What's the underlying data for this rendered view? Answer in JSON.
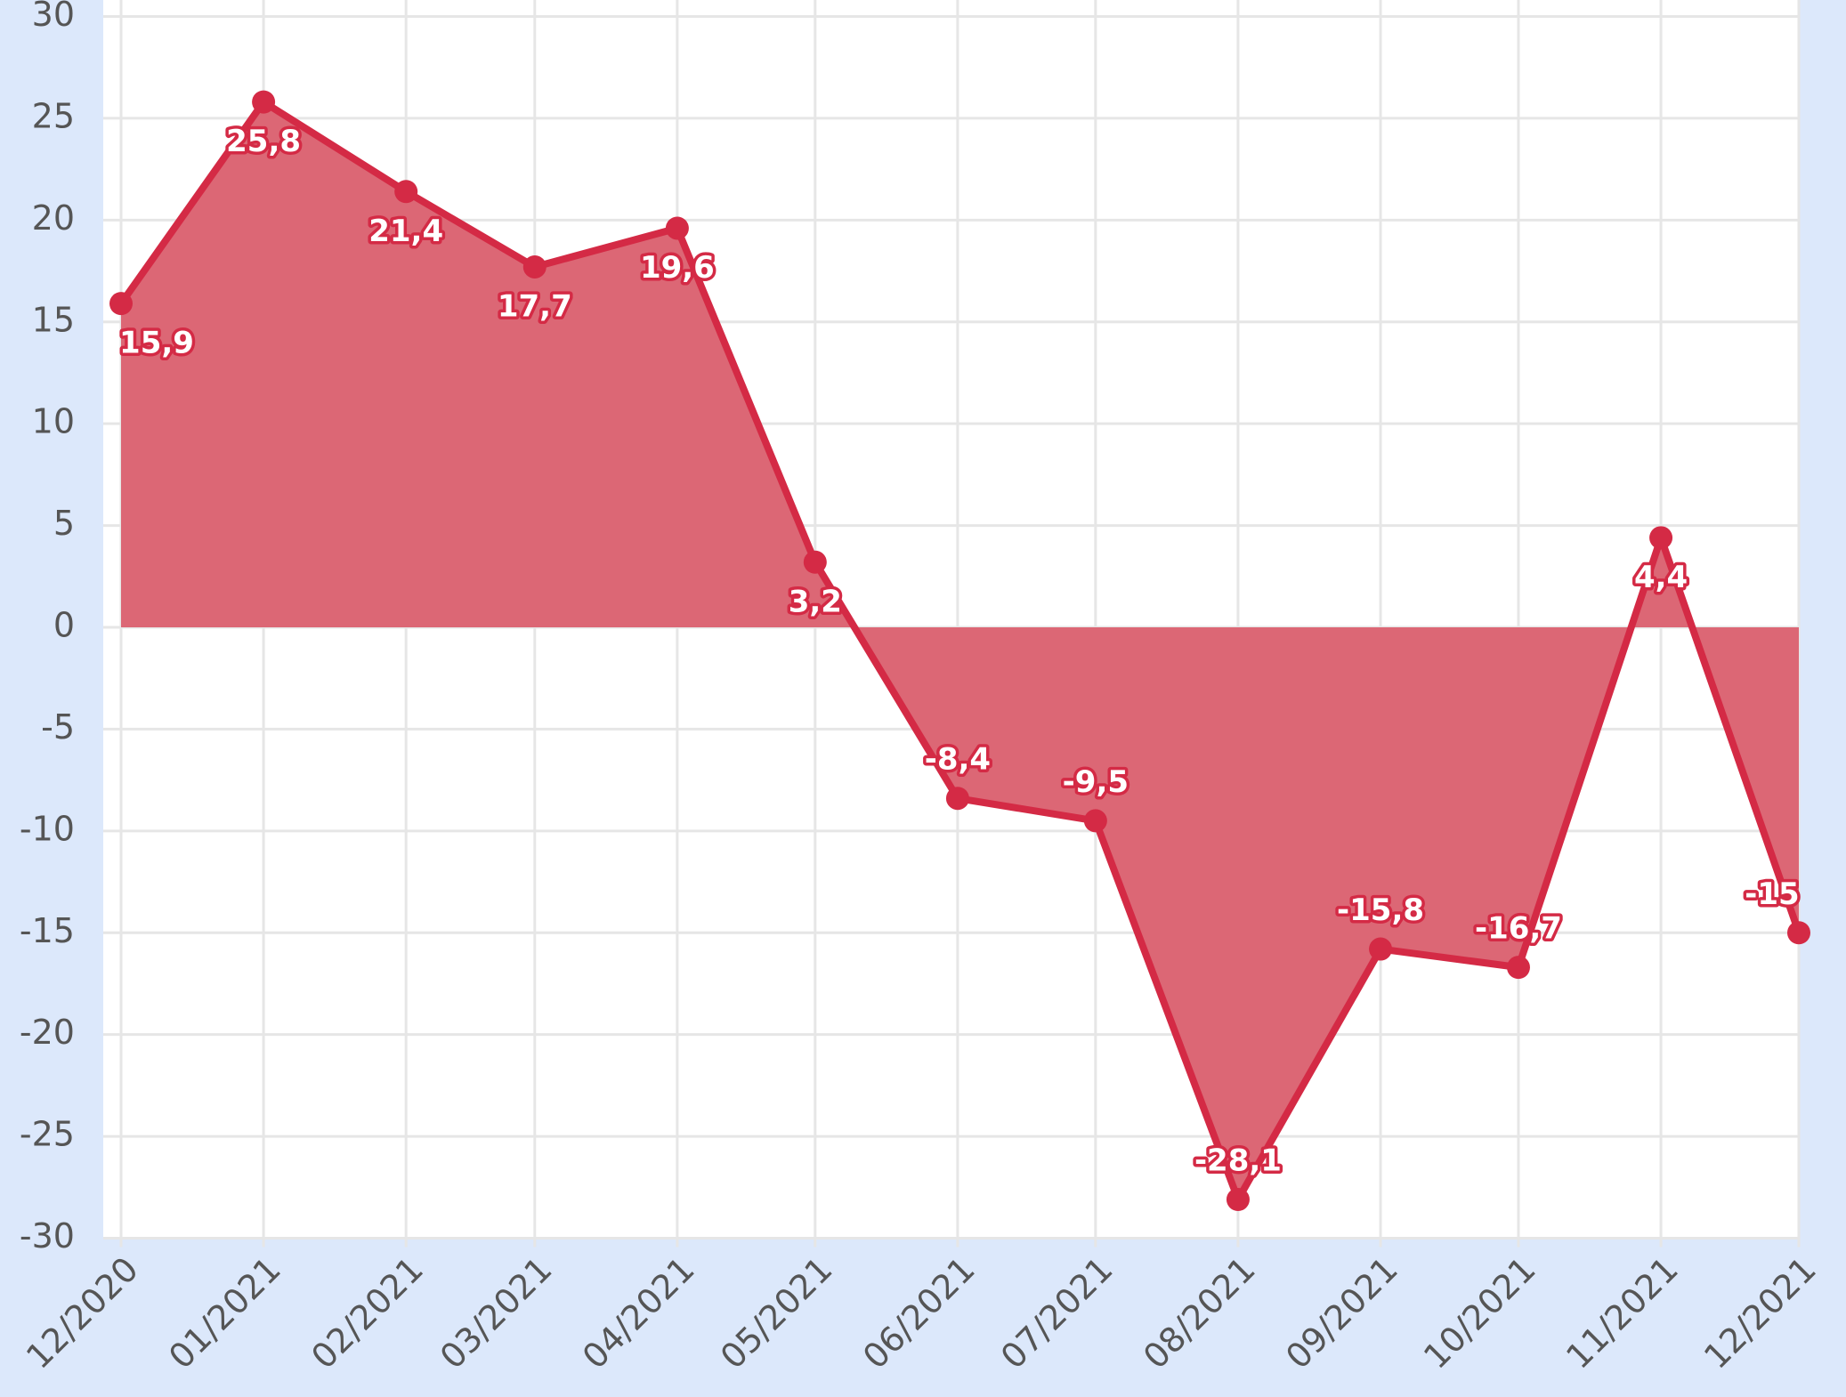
{
  "chart_data": {
    "type": "area",
    "x": [
      "12/2020",
      "01/2021",
      "02/2021",
      "03/2021",
      "04/2021",
      "05/2021",
      "06/2021",
      "07/2021",
      "08/2021",
      "09/2021",
      "10/2021",
      "11/2021",
      "12/2021"
    ],
    "series": [
      {
        "color": "#d42a45",
        "fill": "#dc6775",
        "values": [
          15.9,
          25.8,
          21.4,
          17.7,
          19.6,
          3.2,
          -8.4,
          -9.5,
          -28.1,
          -15.8,
          -16.7,
          4.4,
          -15
        ],
        "value_labels": [
          "15,9",
          "25,8",
          "21,4",
          "17,7",
          "19,6",
          "3,2",
          "-8,4",
          "-9,5",
          "-28,1",
          "-15,8",
          "-16,7",
          "4,4",
          "-15"
        ]
      }
    ],
    "ylim": [
      -30,
      30
    ],
    "yticks": [
      -30,
      -25,
      -20,
      -15,
      -10,
      -5,
      0,
      5,
      10,
      15,
      20,
      25,
      30
    ],
    "grid": true
  }
}
